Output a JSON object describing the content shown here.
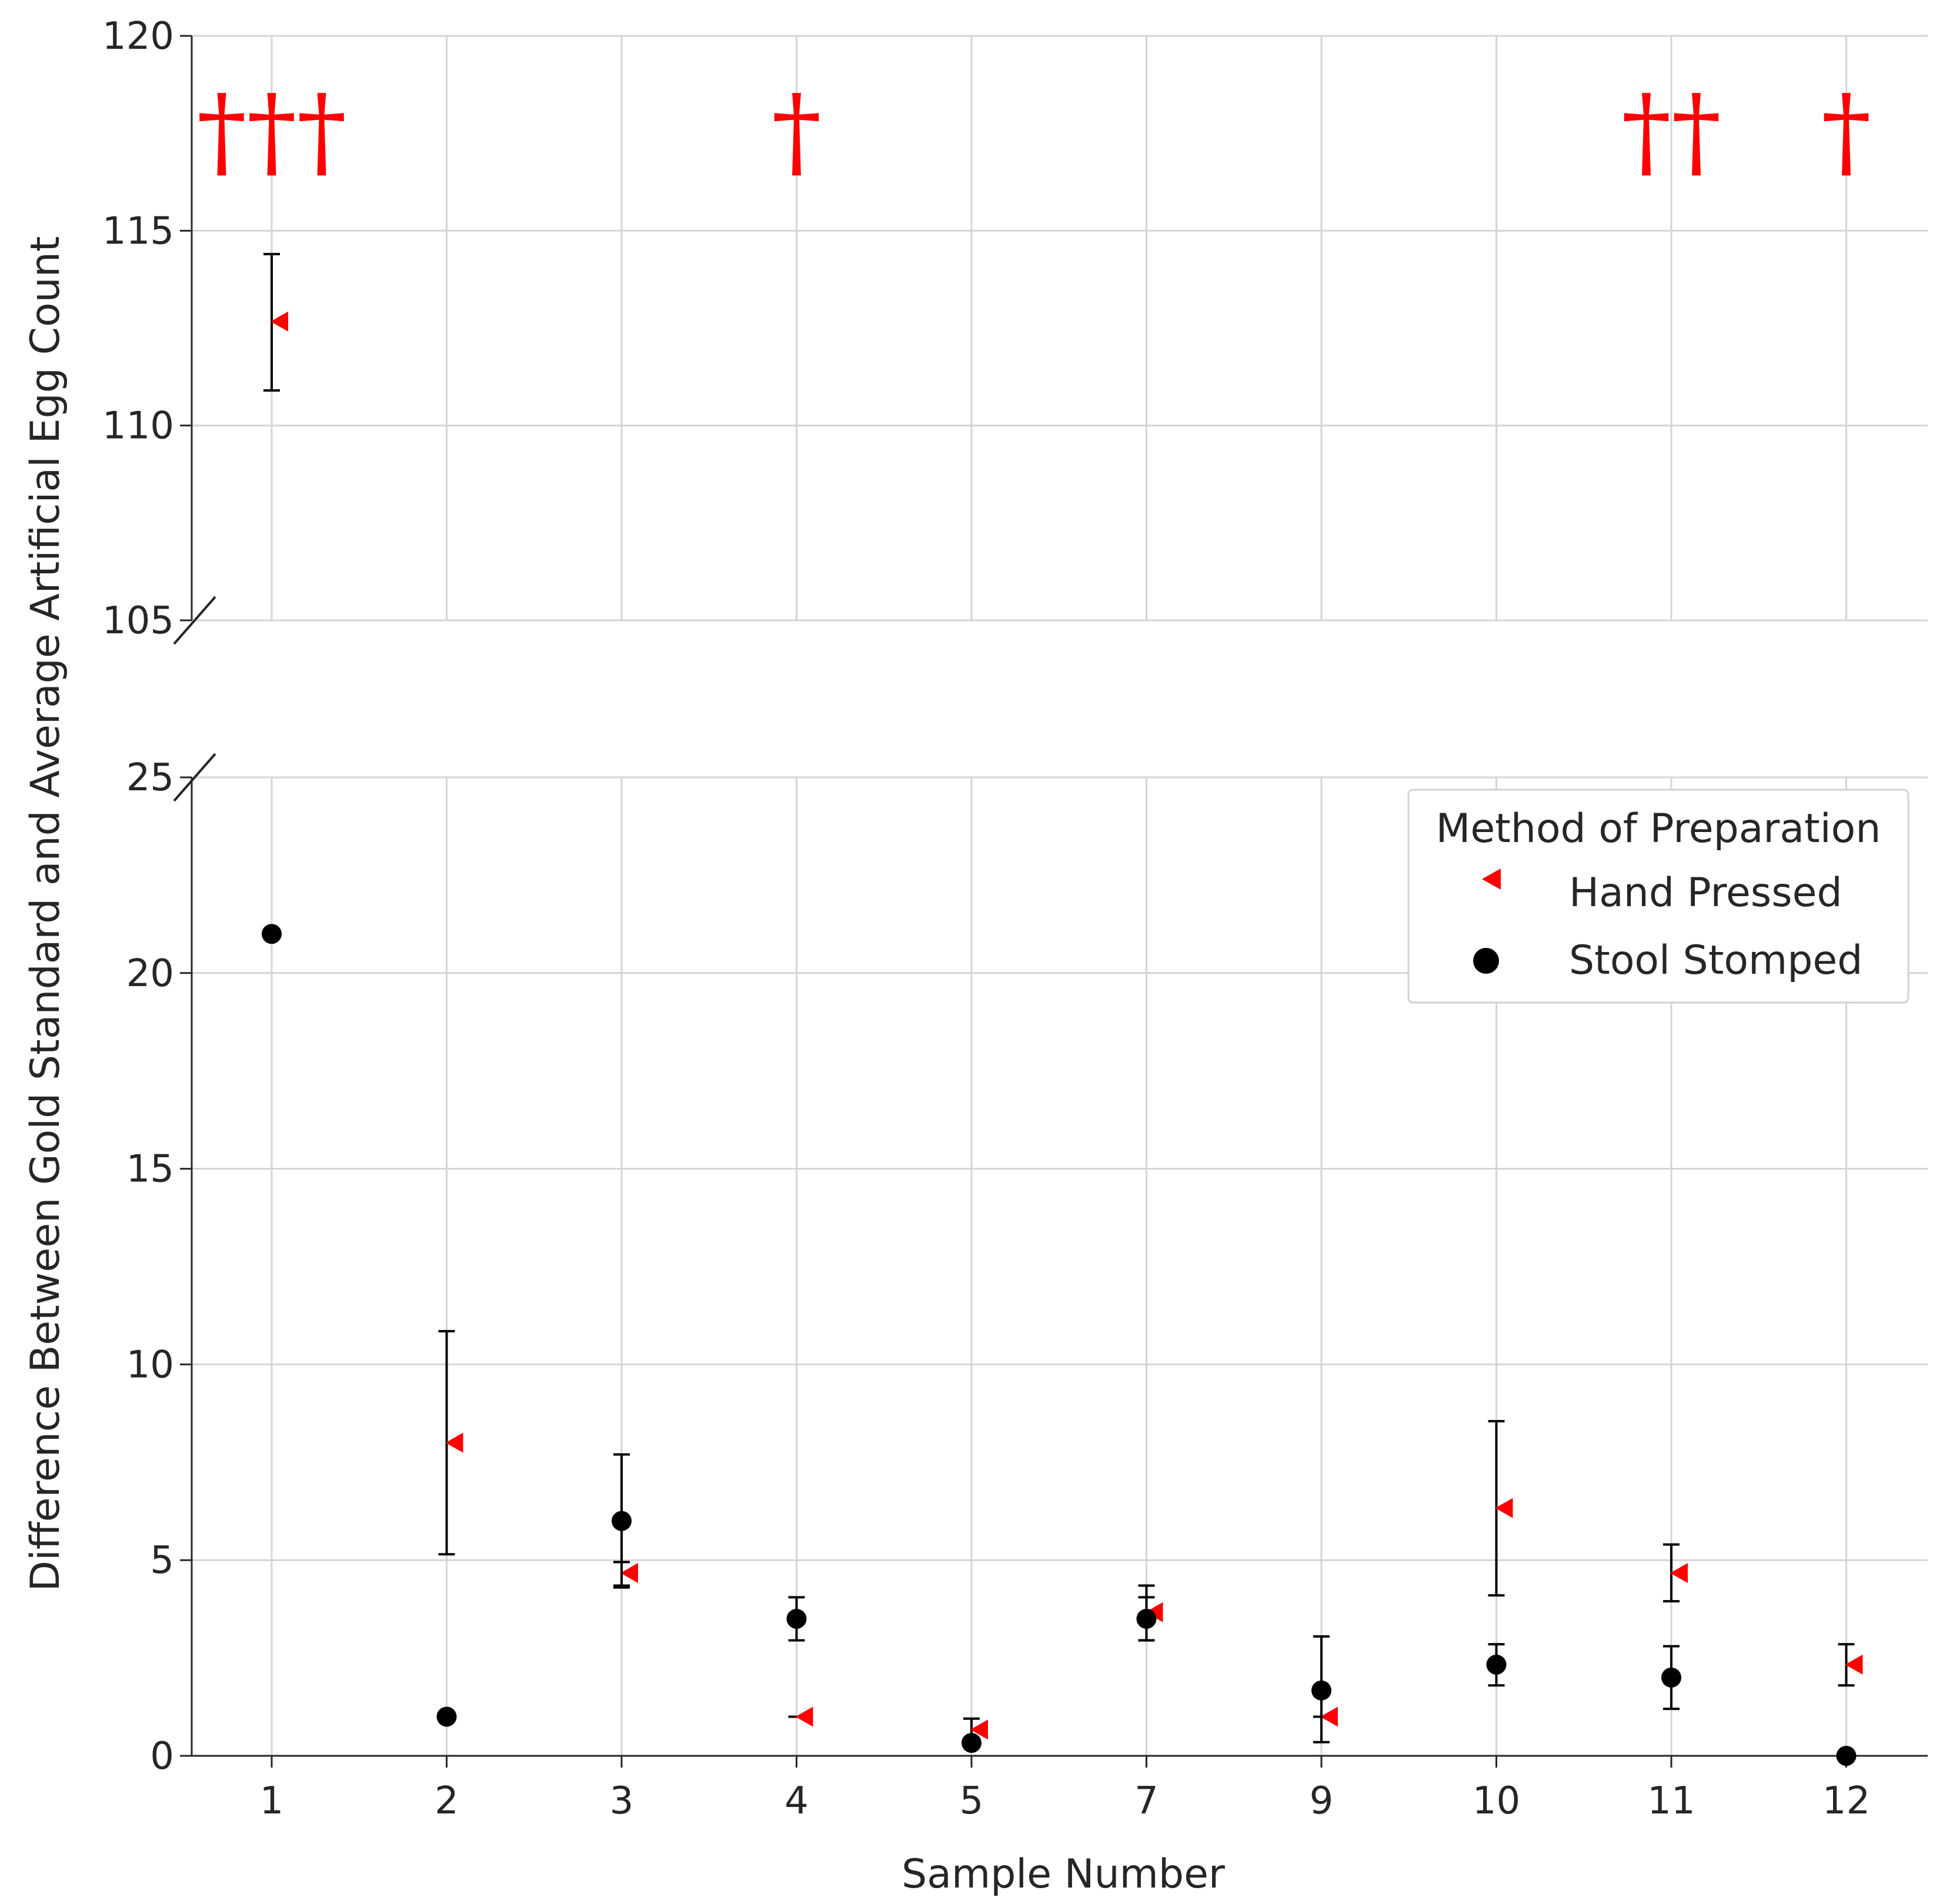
{
  "chart_data": {
    "type": "scatter",
    "title": "",
    "xlabel": "Sample Number",
    "ylabel": "Difference Between Gold Standard and Average Artificial Egg Count",
    "categories": [
      "1",
      "2",
      "3",
      "4",
      "5",
      "7",
      "9",
      "10",
      "11",
      "12"
    ],
    "broken_y_axis": {
      "top_panel": {
        "ylim": [
          105,
          120
        ],
        "ticks": [
          105,
          110,
          115,
          120
        ]
      },
      "bottom_panel": {
        "ylim": [
          0,
          25
        ],
        "ticks": [
          0,
          5,
          10,
          15,
          20,
          25
        ]
      }
    },
    "grid": true,
    "legend": {
      "title": "Method of Preparation",
      "position": "upper-right",
      "entries": [
        "Hand Pressed",
        "Stool Stomped"
      ]
    },
    "series": [
      {
        "name": "Hand Pressed",
        "marker": "triangle-left",
        "color": "#ff0000",
        "values": [
          112.67,
          8.0,
          4.67,
          1.0,
          0.67,
          3.67,
          1.0,
          6.33,
          4.67,
          2.33
        ],
        "err_low": [
          110.9,
          5.15,
          4.3,
          1.0,
          0.35,
          2.95,
          1.0,
          4.1,
          3.95,
          1.8
        ],
        "err_high": [
          114.4,
          10.85,
          4.95,
          1.0,
          0.95,
          4.35,
          1.0,
          8.55,
          5.4,
          2.85
        ]
      },
      {
        "name": "Stool Stomped",
        "marker": "circle",
        "color": "#000000",
        "values": [
          21.0,
          1.0,
          6.0,
          3.5,
          0.33,
          3.5,
          1.67,
          2.33,
          2.0,
          0.0
        ],
        "err_low": [
          21.0,
          1.0,
          4.35,
          2.95,
          0.25,
          2.95,
          0.35,
          1.8,
          1.2,
          0.0
        ],
        "err_high": [
          21.0,
          1.0,
          7.7,
          4.05,
          0.42,
          4.05,
          3.05,
          2.85,
          2.8,
          0.0
        ]
      }
    ],
    "annotations": [
      {
        "category": "1",
        "text": "†††",
        "color": "#ff0000"
      },
      {
        "category": "4",
        "text": "†",
        "color": "#ff0000"
      },
      {
        "category": "11",
        "text": "††",
        "color": "#ff0000"
      },
      {
        "category": "12",
        "text": "†",
        "color": "#ff0000"
      }
    ]
  }
}
